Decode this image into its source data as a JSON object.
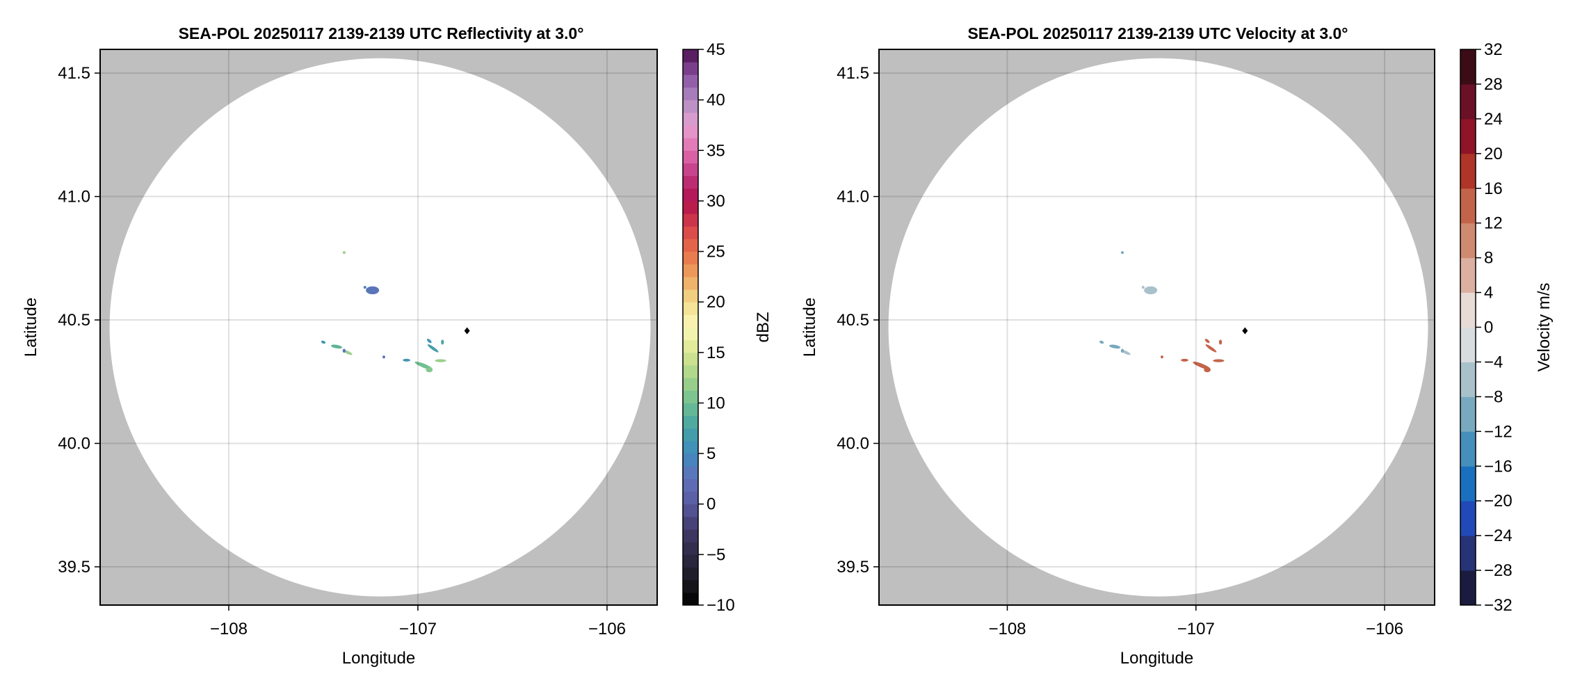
{
  "chart_data": [
    {
      "type": "heatmap",
      "title": "SEA-POL 20250117 2139-2139 UTC Reflectivity at 3.0°",
      "xlabel": "Longitude",
      "ylabel": "Latitude",
      "xlim": [
        -108.68,
        -105.735
      ],
      "ylim": [
        39.345,
        41.596
      ],
      "xticks": [
        -108,
        -107,
        -106
      ],
      "xtick_labels": [
        "−108",
        "−107",
        "−106"
      ],
      "yticks": [
        39.5,
        40.0,
        40.5,
        41.0,
        41.5
      ],
      "ytick_labels": [
        "39.5",
        "40.0",
        "40.5",
        "41.0",
        "41.5"
      ],
      "grid": true,
      "colorbar": {
        "label": "dBZ",
        "range": [
          -10,
          45
        ],
        "ticks": [
          -10,
          -5,
          0,
          5,
          10,
          15,
          20,
          25,
          30,
          35,
          40,
          45
        ],
        "tick_labels": [
          "−10",
          "−5",
          "0",
          "5",
          "10",
          "15",
          "20",
          "25",
          "30",
          "35",
          "40",
          "45"
        ],
        "colors": [
          "#000000",
          "#1c1a24",
          "#2e2a45",
          "#403a6a",
          "#5a5aa0",
          "#6170b8",
          "#3f8bbf",
          "#45a3a4",
          "#6fbf92",
          "#a5d38a",
          "#d8e690",
          "#fbf8b8",
          "#f3dc8c",
          "#eea560",
          "#e8704a",
          "#d6404a",
          "#b0104c",
          "#c03580",
          "#e070b0",
          "#e5a0d0",
          "#b08ac2",
          "#8a50a0",
          "#4a0d4e"
        ]
      },
      "field": "dbz"
    },
    {
      "type": "heatmap",
      "title": "SEA-POL 20250117 2139-2139 UTC Velocity at 3.0°",
      "xlabel": "Longitude",
      "ylabel": "Latitude",
      "xlim": [
        -108.68,
        -105.735
      ],
      "ylim": [
        39.345,
        41.596
      ],
      "xticks": [
        -108,
        -107,
        -106
      ],
      "xtick_labels": [
        "−108",
        "−107",
        "−106"
      ],
      "yticks": [
        39.5,
        40.0,
        40.5,
        41.0,
        41.5
      ],
      "ytick_labels": [
        "39.5",
        "40.0",
        "40.5",
        "41.0",
        "41.5"
      ],
      "grid": true,
      "colorbar": {
        "label": "Velocity m/s",
        "range": [
          -32,
          32
        ],
        "ticks": [
          -32,
          -28,
          -24,
          -20,
          -16,
          -12,
          -8,
          -4,
          0,
          4,
          8,
          12,
          16,
          20,
          24,
          28,
          32
        ],
        "tick_labels": [
          "−32",
          "−28",
          "−24",
          "−20",
          "−16",
          "−12",
          "−8",
          "−4",
          "0",
          "4",
          "8",
          "12",
          "16",
          "20",
          "24",
          "28",
          "32"
        ],
        "bands": [
          "#1a1b3f",
          "#263377",
          "#2249b8",
          "#1a70be",
          "#468fbb",
          "#78a9be",
          "#a9c1cb",
          "#d8dcdf",
          "#e8dad5",
          "#dcb0a0",
          "#cf8a70",
          "#c3644a",
          "#ae3527",
          "#8f1427",
          "#6a1027",
          "#3b0c16"
        ]
      },
      "field": "vel"
    }
  ],
  "coverage": {
    "center_lon": -107.2,
    "center_lat": 40.47,
    "radius_lon": 1.43,
    "radius_lat": 1.09,
    "outside_color": "#bfbfbf"
  },
  "radar_marker": {
    "lon": -106.74,
    "lat": 40.456
  },
  "echoes": [
    {
      "lon": -107.39,
      "lat": 40.773,
      "dlon": 0.006,
      "dlat": 0.003,
      "rot": 0,
      "dbz": 12,
      "vel": -10
    },
    {
      "lon": -107.24,
      "lat": 40.62,
      "dlon": 0.035,
      "dlat": 0.016,
      "rot": 0,
      "dbz": 3,
      "vel": -6
    },
    {
      "lon": -107.28,
      "lat": 40.632,
      "dlon": 0.006,
      "dlat": 0.004,
      "rot": 0,
      "dbz": 4,
      "vel": -6
    },
    {
      "lon": -107.5,
      "lat": 40.41,
      "dlon": 0.012,
      "dlat": 0.004,
      "rot": 20,
      "dbz": 6,
      "vel": -12
    },
    {
      "lon": -107.43,
      "lat": 40.392,
      "dlon": 0.03,
      "dlat": 0.007,
      "rot": 10,
      "dbz": 9,
      "vel": -10
    },
    {
      "lon": -107.37,
      "lat": 40.368,
      "dlon": 0.025,
      "dlat": 0.006,
      "rot": 25,
      "dbz": 12,
      "vel": -7
    },
    {
      "lon": -107.39,
      "lat": 40.375,
      "dlon": 0.008,
      "dlat": 0.008,
      "rot": 0,
      "dbz": 3,
      "vel": -11
    },
    {
      "lon": -107.18,
      "lat": 40.35,
      "dlon": 0.003,
      "dlat": 0.006,
      "rot": 0,
      "dbz": 3,
      "vel": 12
    },
    {
      "lon": -107.06,
      "lat": 40.337,
      "dlon": 0.02,
      "dlat": 0.004,
      "rot": 0,
      "dbz": 6,
      "vel": 12
    },
    {
      "lon": -106.97,
      "lat": 40.315,
      "dlon": 0.05,
      "dlat": 0.008,
      "rot": 22,
      "dbz": 10,
      "vel": 13
    },
    {
      "lon": -106.94,
      "lat": 40.298,
      "dlon": 0.018,
      "dlat": 0.01,
      "rot": 0,
      "dbz": 11,
      "vel": 14
    },
    {
      "lon": -106.92,
      "lat": 40.385,
      "dlon": 0.035,
      "dlat": 0.006,
      "rot": 35,
      "dbz": 7,
      "vel": 13
    },
    {
      "lon": -106.94,
      "lat": 40.415,
      "dlon": 0.015,
      "dlat": 0.005,
      "rot": 40,
      "dbz": 6,
      "vel": 14
    },
    {
      "lon": -106.88,
      "lat": 40.335,
      "dlon": 0.03,
      "dlat": 0.006,
      "rot": 0,
      "dbz": 12,
      "vel": 14
    },
    {
      "lon": -106.87,
      "lat": 40.41,
      "dlon": 0.008,
      "dlat": 0.01,
      "rot": 0,
      "dbz": 8,
      "vel": 13
    }
  ]
}
